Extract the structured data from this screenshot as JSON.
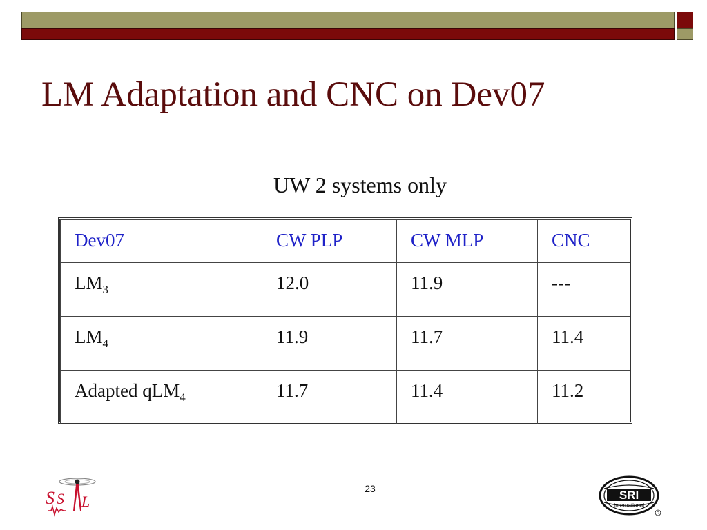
{
  "slide": {
    "title": "LM Adaptation and CNC on Dev07",
    "subtitle": "UW 2 systems only",
    "page_number": "23"
  },
  "table": {
    "headers": [
      "Dev07",
      "CW PLP",
      "CW MLP",
      "CNC"
    ],
    "rows": [
      {
        "label": "LM",
        "label_sub": "3",
        "values": [
          "12.0",
          "11.9",
          "---"
        ]
      },
      {
        "label": "LM",
        "label_sub": "4",
        "values": [
          "11.9",
          "11.7",
          "11.4"
        ]
      },
      {
        "label": "Adapted qLM",
        "label_sub": "4",
        "values": [
          "11.7",
          "11.4",
          "11.2"
        ]
      }
    ]
  },
  "logos": {
    "left_logo_text": "SSLI",
    "right_logo_text": "SRI",
    "right_logo_subtext": "International"
  },
  "colors": {
    "title": "#5a0c0c",
    "header_text": "#1f22c8",
    "band_olive": "#9d9a66",
    "band_maroon": "#7b0a0a"
  }
}
